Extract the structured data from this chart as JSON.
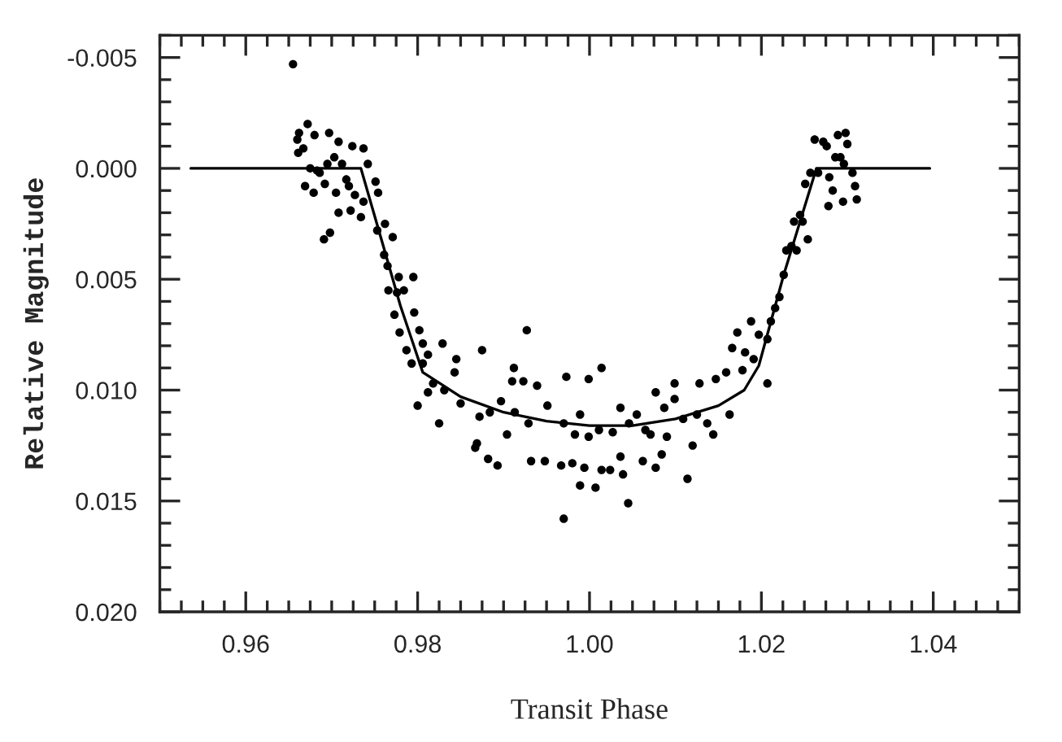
{
  "chart_data": {
    "type": "scatter",
    "xlabel": "Transit Phase",
    "ylabel": "Relative Magnitude",
    "xlim": [
      0.95,
      1.05
    ],
    "ylim": [
      0.02,
      -0.006
    ],
    "xticks": [
      0.96,
      0.98,
      {
        "value": 1.0,
        "label": "1.00"
      },
      1.02,
      1.04
    ],
    "yticks": [
      -0.005,
      {
        "value": 0.0,
        "label": "0.000"
      },
      0.005,
      {
        "value": 0.01,
        "label": "0.010"
      },
      0.015,
      {
        "value": 0.02,
        "label": "0.020"
      }
    ],
    "grid": false,
    "marker": "circle",
    "series": [
      {
        "color": "#000000",
        "x": [
          0.9655,
          0.966,
          0.9662,
          0.9672,
          0.968,
          0.9697,
          0.9708,
          0.9661,
          0.9667,
          0.9675,
          0.9686,
          0.9692,
          0.9669,
          0.9679,
          0.9695,
          0.9703,
          0.9712,
          0.9717,
          0.9724,
          0.9737,
          0.9742,
          0.972,
          0.9727,
          0.9737,
          0.9751,
          0.9754,
          0.9708,
          0.9722,
          0.9734,
          0.9691,
          0.9698,
          0.9705,
          0.9683,
          0.9753,
          0.9762,
          0.9771,
          0.9761,
          0.9765,
          0.9778,
          0.9795,
          0.9766,
          0.9776,
          0.9784,
          0.9773,
          0.9796,
          0.9779,
          0.9802,
          0.9787,
          0.9806,
          0.9829,
          0.9793,
          0.9812,
          0.9845,
          0.9875,
          0.9927,
          0.9912,
          0.98,
          0.9806,
          0.9825,
          0.9812,
          0.9831,
          0.985,
          0.9869,
          0.9867,
          0.9882,
          0.9893,
          0.9904,
          0.9872,
          0.9884,
          0.9897,
          0.991,
          0.9923,
          0.9913,
          0.9932,
          0.9929,
          0.9818,
          0.9843,
          0.9939,
          0.9948,
          0.997,
          0.9967,
          0.998,
          0.9989,
          1.0007,
          0.9994,
          1.0014,
          1.0024,
          1.0036,
          1.0045,
          1.0039,
          1.0077,
          1.0062,
          1.0084,
          1.0114,
          1.012,
          0.9951,
          0.997,
          0.9983,
          0.9999,
          1.0011,
          1.0027,
          1.0046,
          1.0055,
          1.0065,
          1.0077,
          1.0087,
          1.0099,
          1.0109,
          1.0125,
          1.0137,
          1.0144,
          1.0128,
          1.0099,
          1.0147,
          1.0159,
          1.0163,
          1.0178,
          1.0191,
          1.0207,
          0.9999,
          1.0014,
          0.9973,
          0.9989,
          1.0036,
          1.0071,
          1.009,
          1.0166,
          1.0188,
          1.0172,
          1.0181,
          1.0197,
          1.0207,
          1.0211,
          1.0216,
          1.0221,
          1.0226,
          1.0229,
          1.0235,
          1.0241,
          1.0238,
          1.0248,
          1.0245,
          1.0254,
          1.0251,
          1.0257,
          1.0262,
          1.0272,
          1.0276,
          1.0266,
          1.0278,
          1.0283,
          1.0279,
          1.0286,
          1.0292,
          1.0289,
          1.0298,
          1.03,
          1.0295,
          1.0306,
          1.0309,
          1.0311,
          1.0296
        ],
        "values": [
          -0.0047,
          -0.0013,
          -0.0016,
          -0.002,
          -0.0015,
          -0.0016,
          -0.0012,
          -0.0007,
          -0.0009,
          0.0,
          0.0002,
          0.0007,
          0.0008,
          0.0011,
          -0.0002,
          -0.0005,
          -0.0002,
          0.0005,
          -0.001,
          -0.0009,
          -0.0002,
          0.0008,
          0.0012,
          0.0015,
          0.0006,
          0.0011,
          0.002,
          0.0019,
          0.0022,
          0.0032,
          0.0029,
          0.0011,
          0.0001,
          0.0028,
          0.0025,
          0.0031,
          0.0039,
          0.0044,
          0.0049,
          0.0049,
          0.0055,
          0.0056,
          0.0055,
          0.0066,
          0.0065,
          0.0074,
          0.0073,
          0.0082,
          0.0079,
          0.0079,
          0.0088,
          0.0084,
          0.0086,
          0.0082,
          0.0073,
          0.009,
          0.0107,
          0.0088,
          0.0115,
          0.0101,
          0.01,
          0.0106,
          0.0124,
          0.0126,
          0.0131,
          0.0134,
          0.012,
          0.0112,
          0.011,
          0.0105,
          0.0096,
          0.0096,
          0.011,
          0.0132,
          0.0115,
          0.0097,
          0.0092,
          0.0098,
          0.0132,
          0.0158,
          0.0134,
          0.0133,
          0.0143,
          0.0144,
          0.0135,
          0.0136,
          0.0136,
          0.013,
          0.0151,
          0.0138,
          0.0135,
          0.0132,
          0.0129,
          0.014,
          0.0125,
          0.0107,
          0.0115,
          0.012,
          0.0121,
          0.0118,
          0.0119,
          0.0115,
          0.0111,
          0.0118,
          0.0101,
          0.0108,
          0.0104,
          0.0113,
          0.0111,
          0.0115,
          0.012,
          0.0097,
          0.0097,
          0.0095,
          0.0092,
          0.0111,
          0.0091,
          0.0086,
          0.0097,
          0.0095,
          0.009,
          0.0094,
          0.0111,
          0.0108,
          0.012,
          0.0121,
          0.0081,
          0.0069,
          0.0074,
          0.0083,
          0.0075,
          0.0077,
          0.0069,
          0.0063,
          0.0058,
          0.0048,
          0.0037,
          0.0035,
          0.0037,
          0.0024,
          0.0024,
          0.0021,
          0.0032,
          0.0007,
          0.0002,
          -0.0013,
          -0.0012,
          -0.001,
          0.0002,
          0.0017,
          0.001,
          0.0004,
          -0.0005,
          -0.0005,
          -0.0015,
          -0.0016,
          -0.0011,
          0.0015,
          0.0002,
          0.0008,
          0.0014,
          -0.0002
        ]
      },
      {
        "type": "line",
        "color": "#000000",
        "marker": "none",
        "line_style": "solid",
        "x": [
          0.9536,
          0.9734,
          0.976,
          0.978,
          0.9806,
          0.985,
          0.99,
          0.995,
          1.0,
          1.005,
          1.01,
          1.015,
          1.018,
          1.0197,
          1.0226,
          1.0264,
          1.0396
        ],
        "values": [
          0,
          0,
          0.0035,
          0.0062,
          0.0092,
          0.0103,
          0.011,
          0.0114,
          0.0116,
          0.0116,
          0.0113,
          0.0107,
          0.01,
          0.0089,
          0.0048,
          0,
          0
        ]
      }
    ]
  }
}
